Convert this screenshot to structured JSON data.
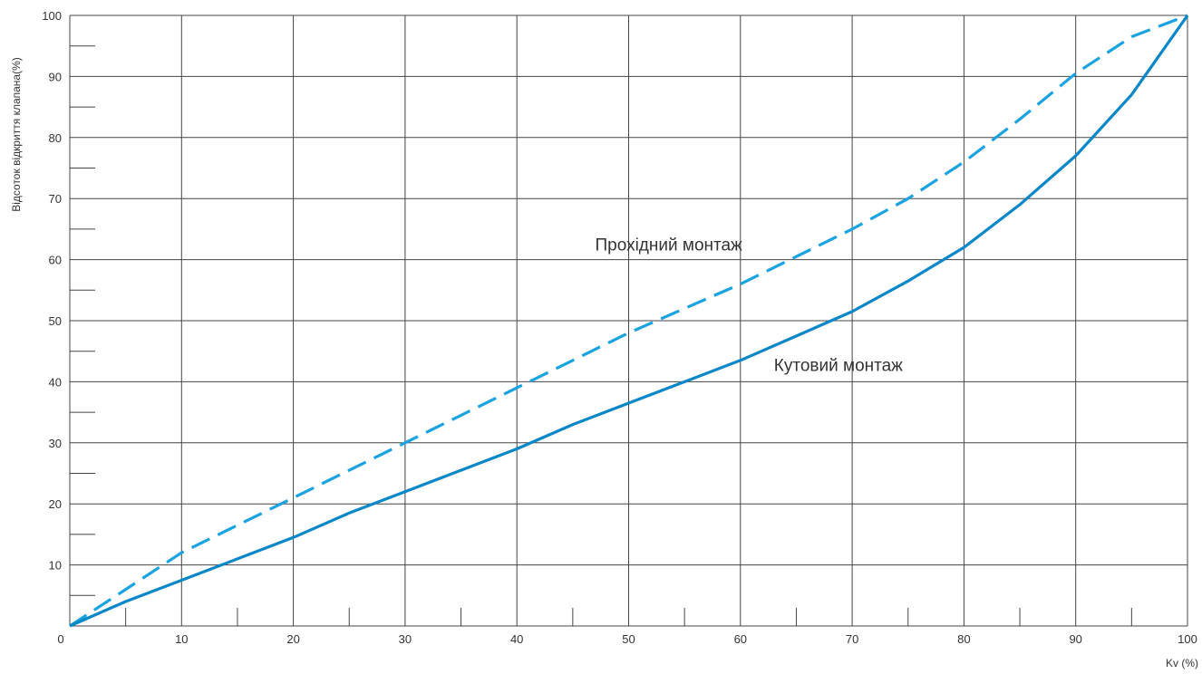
{
  "chart_data": {
    "type": "line",
    "title": "",
    "xlabel": "Kv (%)",
    "ylabel": "Відсоток відкриття клапана(%)",
    "xlim": [
      0,
      100
    ],
    "ylim": [
      0,
      100
    ],
    "x_ticks": [
      "0",
      "10",
      "20",
      "30",
      "40",
      "50",
      "60",
      "70",
      "80",
      "90",
      "100"
    ],
    "y_ticks": [
      "10",
      "20",
      "30",
      "40",
      "50",
      "60",
      "70",
      "80",
      "90",
      "100"
    ],
    "grid": true,
    "legend": "none (inline labels)",
    "series": [
      {
        "name": "Прохідний монтаж",
        "style": "dashed",
        "color": "#1aa3e0",
        "points": [
          [
            0,
            0
          ],
          [
            5,
            6
          ],
          [
            10,
            12
          ],
          [
            15,
            16.5
          ],
          [
            20,
            21
          ],
          [
            25,
            25.5
          ],
          [
            30,
            30
          ],
          [
            35,
            34.5
          ],
          [
            40,
            39
          ],
          [
            45,
            43.5
          ],
          [
            50,
            48
          ],
          [
            55,
            52
          ],
          [
            60,
            56
          ],
          [
            65,
            60.5
          ],
          [
            70,
            65
          ],
          [
            75,
            70
          ],
          [
            80,
            76
          ],
          [
            85,
            83
          ],
          [
            90,
            90.5
          ],
          [
            95,
            96.5
          ],
          [
            100,
            100
          ]
        ]
      },
      {
        "name": "Кутовий монтаж",
        "style": "solid",
        "color": "#0a87c8",
        "points": [
          [
            0,
            0
          ],
          [
            5,
            4
          ],
          [
            10,
            7.5
          ],
          [
            15,
            11
          ],
          [
            20,
            14.5
          ],
          [
            25,
            18.5
          ],
          [
            30,
            22
          ],
          [
            35,
            25.5
          ],
          [
            40,
            29
          ],
          [
            45,
            33
          ],
          [
            50,
            36.5
          ],
          [
            55,
            40
          ],
          [
            60,
            43.5
          ],
          [
            65,
            47.5
          ],
          [
            70,
            51.5
          ],
          [
            75,
            56.5
          ],
          [
            80,
            62
          ],
          [
            85,
            69
          ],
          [
            90,
            77
          ],
          [
            95,
            87
          ],
          [
            100,
            100
          ]
        ]
      }
    ],
    "annotations": [
      {
        "text": "Прохідний монтаж",
        "x": 47,
        "y": 61.5
      },
      {
        "text": "Кутовий монтаж",
        "x": 63,
        "y": 41.8
      }
    ]
  }
}
